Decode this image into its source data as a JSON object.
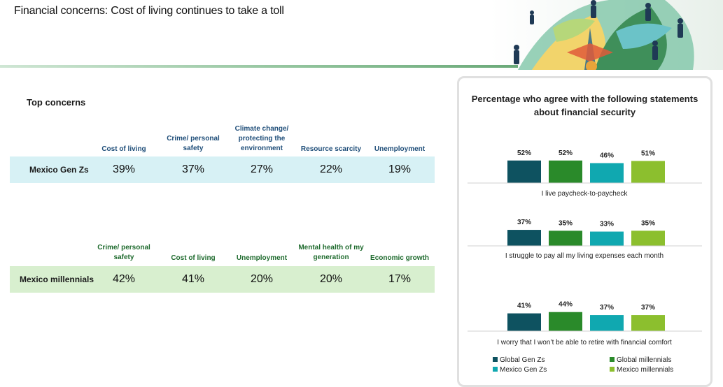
{
  "header": {
    "title": "Financial concerns: Cost of living continues to take a toll"
  },
  "concerns": {
    "section_title": "Top concerns",
    "gen_z": {
      "label": "Mexico Gen Zs",
      "columns": [
        {
          "header": "Cost of living",
          "value": "39%"
        },
        {
          "header": "Crime/ personal safety",
          "value": "37%"
        },
        {
          "header": "Climate change/ protecting the environment",
          "value": "27%"
        },
        {
          "header": "Resource scarcity",
          "value": "22%"
        },
        {
          "header": "Unemployment",
          "value": "19%"
        }
      ]
    },
    "millennials": {
      "label": "Mexico millennials",
      "columns": [
        {
          "header": "Crime/ personal safety",
          "value": "42%"
        },
        {
          "header": "Cost of living",
          "value": "41%"
        },
        {
          "header": "Unemployment",
          "value": "20%"
        },
        {
          "header": "Mental health of my generation",
          "value": "20%"
        },
        {
          "header": "Economic growth",
          "value": "17%"
        }
      ]
    }
  },
  "colors": {
    "global_gen_z": "#0e5260",
    "global_millennials": "#2a8a2a",
    "mexico_gen_z": "#10a8b0",
    "mexico_millennials": "#8cbf2e"
  },
  "chart_data": {
    "type": "bar",
    "title": "Percentage who agree with the following statements about financial security",
    "categories": [
      "I live paycheck-to-paycheck",
      "I struggle to pay all my living expenses each month",
      "I worry that I won’t be able to retire with financial comfort"
    ],
    "series": [
      {
        "name": "Global Gen Zs",
        "values": [
          52,
          37,
          41
        ],
        "labels": [
          "52%",
          "37%",
          "41%"
        ]
      },
      {
        "name": "Global millennials",
        "values": [
          52,
          35,
          44
        ],
        "labels": [
          "52%",
          "35%",
          "44%"
        ]
      },
      {
        "name": "Mexico Gen Zs",
        "values": [
          46,
          33,
          37
        ],
        "labels": [
          "46%",
          "33%",
          "37%"
        ]
      },
      {
        "name": "Mexico millennials",
        "values": [
          51,
          35,
          37
        ],
        "labels": [
          "51%",
          "35%",
          "37%"
        ]
      }
    ],
    "legend_position": "bottom",
    "grid": false
  }
}
